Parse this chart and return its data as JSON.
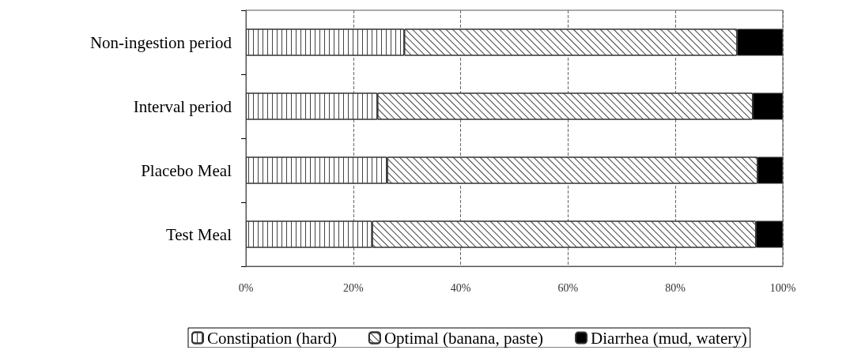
{
  "chart_data": {
    "type": "bar",
    "orientation": "horizontal",
    "stacked": true,
    "categories": [
      "Non-ingestion period",
      "Interval period",
      "Placebo Meal",
      "Test Meal"
    ],
    "series": [
      {
        "name": "Constipation (hard)",
        "color": "#ffffff",
        "values": [
          29.5,
          24.5,
          26.3,
          23.5
        ]
      },
      {
        "name": "Optimal (banana, paste)",
        "color": "#ffffff",
        "values": [
          62,
          69.9,
          69,
          71.5
        ]
      },
      {
        "name": "Diarrhea (mud, watery)",
        "color": "#000000",
        "values": [
          8.5,
          5.6,
          4.7,
          5
        ]
      }
    ],
    "xlim": [
      0,
      100
    ],
    "xticks": [
      {
        "value": 0,
        "label": "0%"
      },
      {
        "value": 20,
        "label": "20%"
      },
      {
        "value": 40,
        "label": "40%"
      },
      {
        "value": 60,
        "label": "60%"
      },
      {
        "value": 80,
        "label": "80%"
      },
      {
        "value": 100,
        "label": "100%"
      }
    ],
    "grid": "x",
    "legend": "bottom"
  }
}
